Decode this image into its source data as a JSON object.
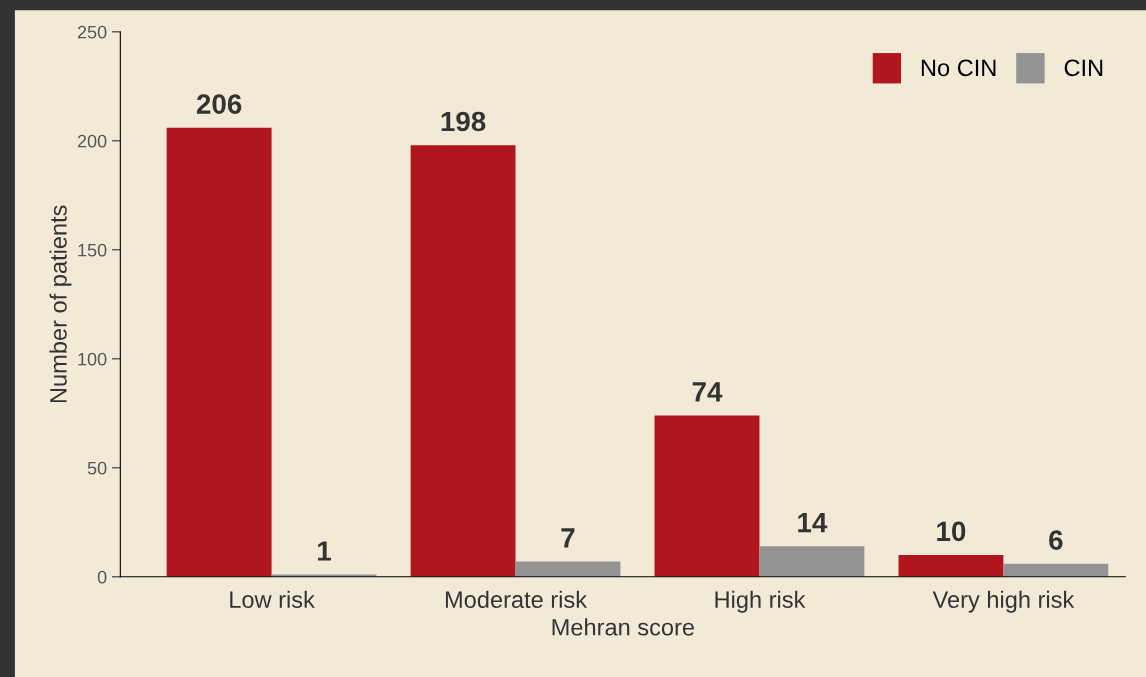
{
  "chart_data": {
    "type": "bar",
    "xlabel": "Mehran score",
    "ylabel": "Number of patients",
    "categories": [
      "Low risk",
      "Moderate risk",
      "High risk",
      "Very high risk"
    ],
    "series": [
      {
        "name": "No CIN",
        "color": "#b0161e",
        "values": [
          206,
          198,
          74,
          10
        ]
      },
      {
        "name": "CIN",
        "color": "#939393",
        "values": [
          1,
          7,
          14,
          6
        ]
      }
    ],
    "ylim": [
      0,
      250
    ],
    "yticks": [
      0,
      50,
      100,
      150,
      200,
      250
    ],
    "data_labels": true,
    "legend": "top right",
    "grid": false
  }
}
